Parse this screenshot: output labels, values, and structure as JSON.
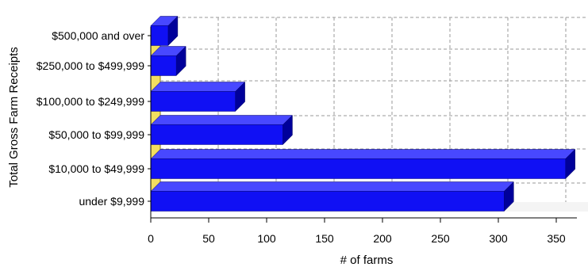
{
  "chart_data": {
    "type": "bar",
    "orientation": "horizontal",
    "title": "",
    "xlabel": "# of farms",
    "ylabel": "Total Gross Farm Receipts",
    "categories": [
      "$500,000 and over",
      "$250,000 to $499,999",
      "$100,000 to $249,999",
      "$50,000 to $99,999",
      "$10,000 to $49,999",
      "under $9,999"
    ],
    "values": [
      15,
      22,
      73,
      114,
      358,
      305
    ],
    "xlim": [
      0,
      375
    ],
    "xticks": [
      0,
      50,
      100,
      150,
      200,
      250,
      300,
      350
    ],
    "grid": true,
    "grid_style": "dashed",
    "legend": "none",
    "colors": {
      "bar_front": "#1010f4",
      "bar_top": "#4848ff",
      "bar_side": "#00009a",
      "wall": "#f2de60",
      "wall_edge": "#8a7a20",
      "grid": "#9a9a9a",
      "axis": "#000000"
    }
  }
}
